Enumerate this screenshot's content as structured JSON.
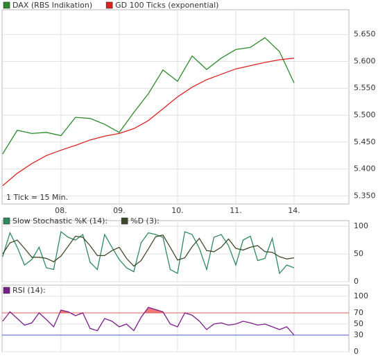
{
  "chart_data": [
    {
      "type": "line",
      "x": [
        -1,
        -0.75,
        -0.5,
        -0.25,
        0,
        0.25,
        0.5,
        0.75,
        1,
        1.25,
        1.5,
        1.75,
        2,
        2.25,
        2.5,
        2.75,
        3,
        3.25,
        3.5,
        3.75,
        4
      ],
      "series": [
        {
          "name": "DAX (RBS Indikation)",
          "color": "#2a8a2a",
          "values": [
            5428,
            5472,
            5466,
            5468,
            5462,
            5496,
            5494,
            5483,
            5468,
            5505,
            5540,
            5584,
            5563,
            5610,
            5585,
            5606,
            5622,
            5626,
            5644,
            5618,
            5560
          ]
        },
        {
          "name": "GD 100 Ticks (exponential)",
          "color": "#dd2222",
          "values": [
            5369,
            5392,
            5410,
            5425,
            5435,
            5444,
            5454,
            5461,
            5466,
            5475,
            5490,
            5512,
            5534,
            5552,
            5566,
            5576,
            5586,
            5592,
            5598,
            5603,
            5606
          ]
        }
      ],
      "xlim": [
        -1.01,
        4.94
      ],
      "xticks": [
        {
          "value": 0,
          "label": "08."
        },
        {
          "value": 1,
          "label": "09."
        },
        {
          "value": 2,
          "label": "10."
        },
        {
          "value": 3,
          "label": "11."
        },
        {
          "value": 4,
          "label": "14."
        }
      ],
      "ylim": [
        5335,
        5696
      ],
      "yticks": [
        {
          "value": 5350,
          "label": "5.350"
        },
        {
          "value": 5400,
          "label": "5.400"
        },
        {
          "value": 5450,
          "label": "5.450"
        },
        {
          "value": 5500,
          "label": "5.500"
        },
        {
          "value": 5550,
          "label": "5.550"
        },
        {
          "value": 5600,
          "label": "5.600"
        },
        {
          "value": 5650,
          "label": "5.650"
        }
      ],
      "annotation": "1 Tick = 15 Min.",
      "grid": true
    },
    {
      "type": "line",
      "x": [
        -1,
        -0.875,
        -0.75,
        -0.625,
        -0.5,
        -0.375,
        -0.25,
        -0.125,
        0,
        0.125,
        0.25,
        0.375,
        0.5,
        0.625,
        0.75,
        0.875,
        1,
        1.125,
        1.25,
        1.375,
        1.5,
        1.625,
        1.75,
        1.875,
        2,
        2.125,
        2.25,
        2.375,
        2.5,
        2.625,
        2.75,
        2.875,
        3,
        3.125,
        3.25,
        3.375,
        3.5,
        3.625,
        3.75,
        3.875,
        4
      ],
      "series": [
        {
          "name": "Slow Stochastic %K (14):",
          "color": "#2e8a5e",
          "values": [
            45,
            88,
            62,
            30,
            40,
            62,
            25,
            22,
            90,
            80,
            75,
            85,
            35,
            22,
            85,
            62,
            40,
            25,
            18,
            70,
            88,
            85,
            80,
            22,
            15,
            90,
            85,
            60,
            22,
            80,
            85,
            65,
            30,
            75,
            82,
            38,
            42,
            78,
            15,
            30,
            25
          ]
        },
        {
          "name": "%D (3):",
          "color": "#3d4a2a",
          "values": [
            50,
            70,
            75,
            60,
            44,
            44,
            42,
            36,
            46,
            64,
            82,
            80,
            65,
            47,
            47,
            56,
            62,
            42,
            28,
            38,
            59,
            81,
            84,
            62,
            39,
            43,
            63,
            78,
            56,
            54,
            62,
            77,
            60,
            57,
            62,
            65,
            54,
            53,
            45,
            41,
            43
          ]
        }
      ],
      "xlim": [
        -1.01,
        4.94
      ],
      "xgrid": [
        0,
        1,
        2,
        3,
        4
      ],
      "ylim": [
        0,
        110
      ],
      "yticks": [
        0,
        50,
        100
      ],
      "grid": true
    },
    {
      "type": "line",
      "x": [
        -1,
        -0.875,
        -0.75,
        -0.625,
        -0.5,
        -0.375,
        -0.25,
        -0.125,
        0,
        0.125,
        0.25,
        0.375,
        0.5,
        0.625,
        0.75,
        0.875,
        1,
        1.125,
        1.25,
        1.375,
        1.5,
        1.625,
        1.75,
        1.875,
        2,
        2.125,
        2.25,
        2.375,
        2.5,
        2.625,
        2.75,
        2.875,
        3,
        3.125,
        3.25,
        3.375,
        3.5,
        3.625,
        3.75,
        3.875,
        4
      ],
      "series": [
        {
          "name": "RSI (14):",
          "color": "#7a1e8a",
          "values": [
            55,
            72,
            60,
            48,
            52,
            70,
            58,
            45,
            75,
            72,
            65,
            70,
            42,
            38,
            60,
            55,
            45,
            50,
            38,
            62,
            80,
            76,
            72,
            50,
            45,
            70,
            66,
            55,
            40,
            50,
            52,
            48,
            50,
            55,
            52,
            48,
            50,
            45,
            40,
            45,
            30
          ]
        }
      ],
      "xlim": [
        -1.01,
        4.94
      ],
      "xgrid": [
        0,
        1,
        2,
        3,
        4
      ],
      "ylim": [
        0,
        120
      ],
      "yticks": [
        0,
        30,
        50,
        70,
        100
      ],
      "levels": [
        {
          "value": 70,
          "color": "#e05a5a",
          "fill": "#f07878"
        },
        {
          "value": 30,
          "color": "#4a5ad0"
        }
      ],
      "grid": true
    }
  ]
}
